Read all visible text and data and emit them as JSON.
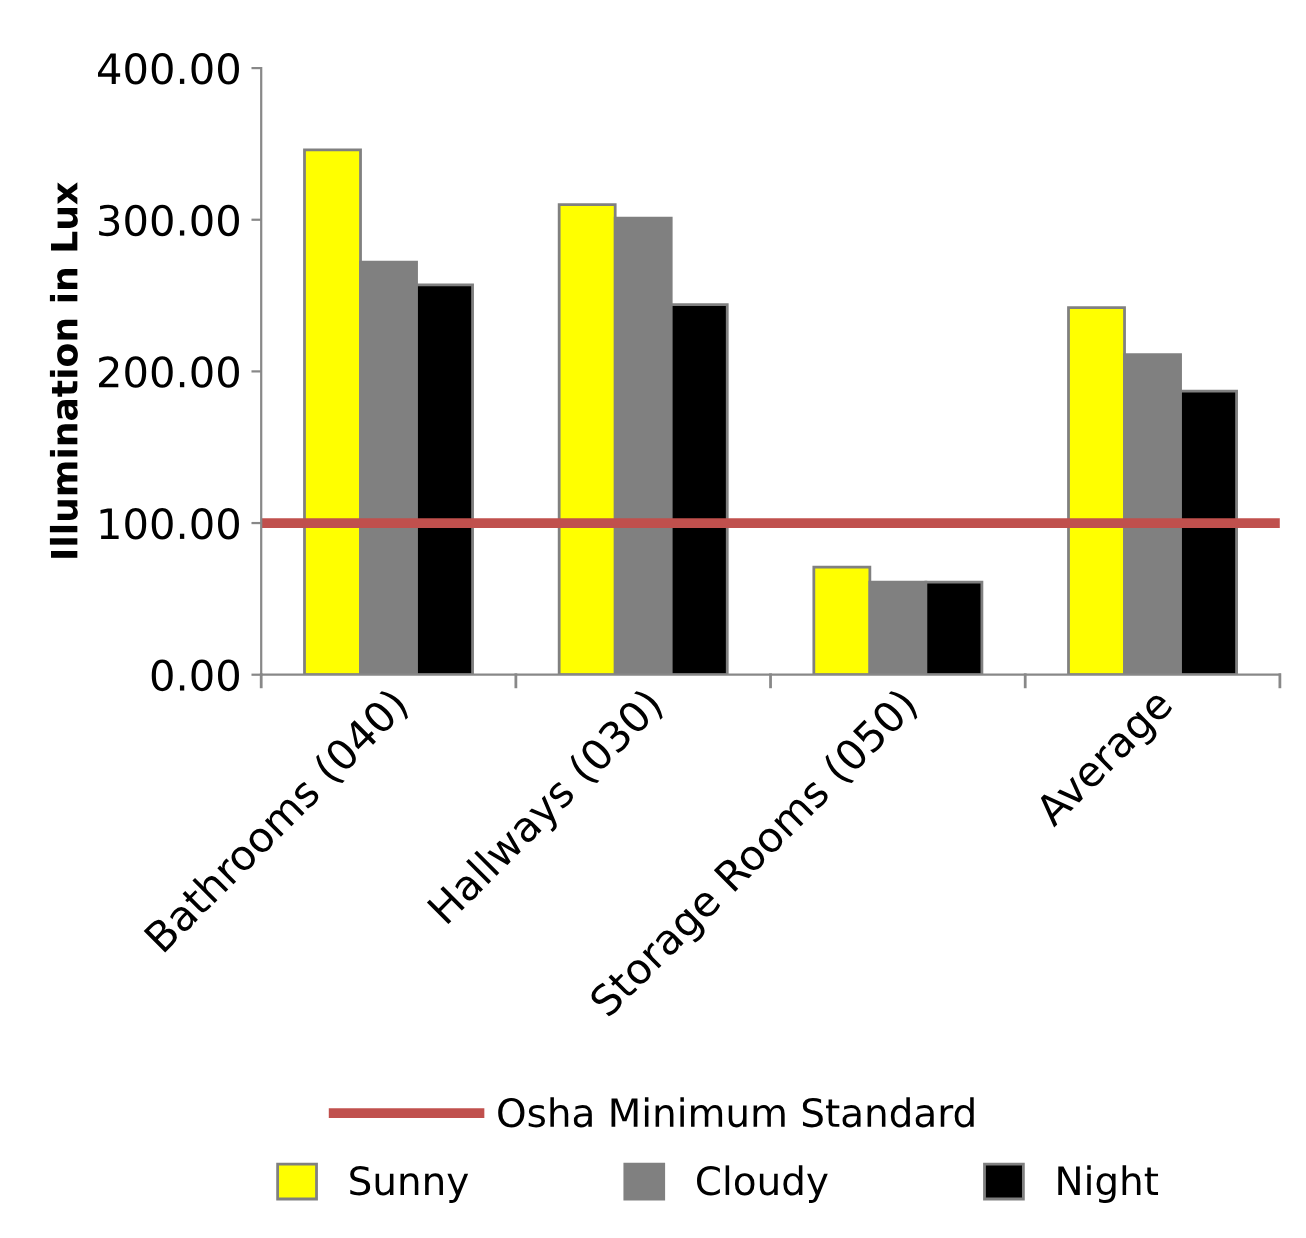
{
  "chart_data": {
    "type": "bar",
    "ylabel": "Illumination in Lux",
    "categories": [
      "Bathrooms (040)",
      "Hallways (030)",
      "Storage Rooms (050)",
      "Average"
    ],
    "series": [
      {
        "name": "Sunny",
        "color": "#ffff00",
        "values": [
          346,
          310,
          71,
          242
        ]
      },
      {
        "name": "Cloudy",
        "color": "#808080",
        "values": [
          272,
          301,
          61,
          211
        ]
      },
      {
        "name": "Night",
        "color": "#000000",
        "values": [
          257,
          244,
          61,
          187
        ]
      }
    ],
    "ref_lines": [
      {
        "axis": "y",
        "value": 100,
        "label": "Osha Minimum Standard",
        "color": "#c0504d",
        "line_style": "solid"
      }
    ],
    "ylim": [
      0,
      400
    ],
    "yticks": [
      {
        "value": 0,
        "label": "0.00"
      },
      {
        "value": 100,
        "label": "100.00"
      },
      {
        "value": 200,
        "label": "200.00"
      },
      {
        "value": 300,
        "label": "300.00"
      },
      {
        "value": 400,
        "label": "400.00"
      }
    ],
    "grid": false,
    "legend": "bottom"
  }
}
